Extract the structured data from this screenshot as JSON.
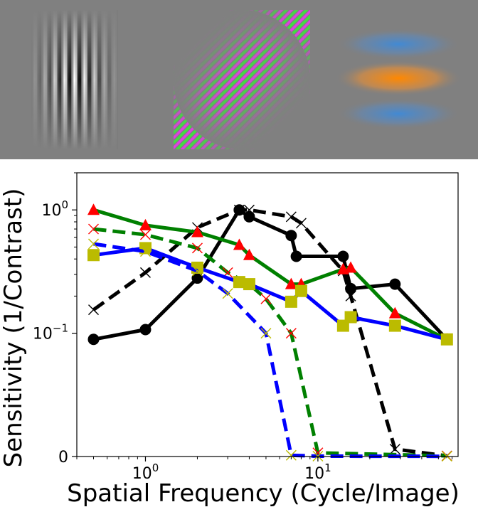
{
  "stimuli": {
    "background": "#808080",
    "items": [
      {
        "name": "luminance-gabor",
        "colors": [
          "#ffffff",
          "#000000"
        ]
      },
      {
        "name": "red-green-gabor",
        "colors": [
          "#e040e0",
          "#40e040"
        ]
      },
      {
        "name": "blue-yellow-gabor",
        "colors": [
          "#ff8800",
          "#3e8ad8"
        ]
      }
    ]
  },
  "chart_data": {
    "type": "line",
    "xlabel": "Spatial Frequency (Cycle/Image)",
    "ylabel": "Sensitivity (1/Contrast)",
    "xscale": "log",
    "yscale": "symlog",
    "xlim": [
      0.4,
      65
    ],
    "ylim": [
      0,
      2.0
    ],
    "xticks": [
      {
        "value": 1,
        "label": "10^0"
      },
      {
        "value": 10,
        "label": "10^1"
      }
    ],
    "yticks": [
      {
        "value": 0,
        "label": "0"
      },
      {
        "value": 0.1,
        "label": "10^-1"
      },
      {
        "value": 1,
        "label": "10^0"
      }
    ],
    "grid": false,
    "legend": "none",
    "series": [
      {
        "color": "#000000",
        "dash": "solid",
        "marker": "circle",
        "marker_color": "#000000",
        "x": [
          0.5,
          1.0,
          2.0,
          3.5,
          4.0,
          7.0,
          7.5,
          14.0,
          15.5,
          28.0,
          56.0
        ],
        "y": [
          0.095,
          0.107,
          0.28,
          1.0,
          0.88,
          0.62,
          0.42,
          0.42,
          0.23,
          0.25,
          0.095
        ]
      },
      {
        "color": "#000000",
        "dash": "dashed",
        "marker": "x",
        "marker_color": "#000000",
        "x": [
          0.5,
          1.0,
          2.0,
          3.5,
          4.0,
          7.0,
          8.0,
          14.0,
          15.5,
          28.0,
          56.0
        ],
        "y": [
          0.155,
          0.31,
          0.72,
          1.0,
          1.0,
          0.88,
          0.78,
          0.32,
          0.2,
          0.006,
          0.0005
        ]
      },
      {
        "color": "#008000",
        "dash": "solid",
        "marker": "triangle",
        "marker_color": "#ff0000",
        "x": [
          0.5,
          1.0,
          2.0,
          3.5,
          4.0,
          7.0,
          8.0,
          14.0,
          15.5,
          28.0,
          56.0
        ],
        "y": [
          1.0,
          0.75,
          0.66,
          0.52,
          0.43,
          0.25,
          0.25,
          0.33,
          0.34,
          0.145,
          0.095
        ]
      },
      {
        "color": "#008000",
        "dash": "dashed",
        "marker": "x",
        "marker_color": "#ff0000",
        "x": [
          0.5,
          1.0,
          2.0,
          3.0,
          4.0,
          5.0,
          7.0,
          10.0,
          56.0
        ],
        "y": [
          0.7,
          0.63,
          0.49,
          0.31,
          0.25,
          0.19,
          0.1,
          0.003,
          0.0005
        ]
      },
      {
        "color": "#0000ff",
        "dash": "solid",
        "marker": "square",
        "marker_color": "#bbbb00",
        "x": [
          0.5,
          1.0,
          2.0,
          3.5,
          4.0,
          7.0,
          8.0,
          14.0,
          15.5,
          28.0,
          56.0
        ],
        "y": [
          0.43,
          0.49,
          0.34,
          0.26,
          0.25,
          0.18,
          0.22,
          0.115,
          0.135,
          0.115,
          0.095
        ]
      },
      {
        "color": "#0000ff",
        "dash": "dashed",
        "marker": "x",
        "marker_color": "#bbbb00",
        "x": [
          0.5,
          1.0,
          2.0,
          3.0,
          5.0,
          7.0,
          10.0,
          56.0
        ],
        "y": [
          0.53,
          0.46,
          0.32,
          0.21,
          0.1,
          0.001,
          0.0003,
          0.0002
        ]
      }
    ]
  }
}
